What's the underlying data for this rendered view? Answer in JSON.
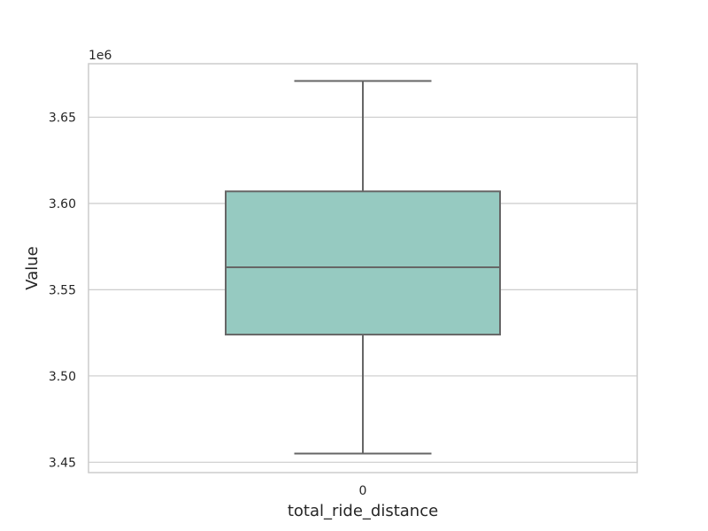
{
  "chart_data": {
    "type": "box",
    "title": "",
    "xlabel": "total_ride_distance",
    "ylabel": "Value",
    "offset_label": "1e6",
    "categories": [
      "0"
    ],
    "boxes": [
      {
        "category": "0",
        "whisker_low": 3.455,
        "q1": 3.524,
        "median": 3.563,
        "q3": 3.607,
        "whisker_high": 3.671
      }
    ],
    "ylim": [
      3.444,
      3.681
    ],
    "yticks": [
      3.45,
      3.5,
      3.55,
      3.6,
      3.65
    ],
    "ytick_labels": [
      "3.45",
      "3.50",
      "3.55",
      "3.60",
      "3.65"
    ],
    "grid": "horizontal",
    "colors": {
      "box_fill": "#96cac1",
      "box_edge": "#666666",
      "grid": "#cccccc",
      "frame": "#cccccc"
    }
  }
}
